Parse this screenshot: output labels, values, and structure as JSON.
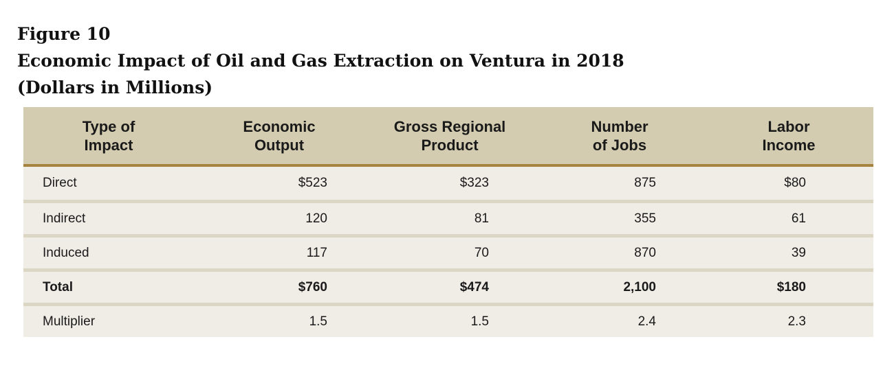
{
  "figure": {
    "label": "Figure 10",
    "title": "Economic Impact of Oil and Gas Extraction on Ventura in 2018",
    "subtitle": "(Dollars in Millions)"
  },
  "table": {
    "headers": [
      "Type of\nImpact",
      "Economic\nOutput",
      "Gross Regional\nProduct",
      "Number\nof Jobs",
      "Labor\nIncome"
    ],
    "rows": [
      [
        "Direct",
        "$523",
        "$323",
        "875",
        "$80"
      ],
      [
        "Indirect",
        "120",
        "81",
        "355",
        "61"
      ],
      [
        "Induced",
        "117",
        "70",
        "870",
        "39"
      ],
      [
        "Total",
        "$760",
        "$474",
        "2,100",
        "$180"
      ],
      [
        "Multiplier",
        "1.5",
        "1.5",
        "2.4",
        "2.3"
      ]
    ]
  },
  "colors": {
    "header_background": "#d3ccb0",
    "header_rule": "#a6843f",
    "row_background": "#f0ede7",
    "row_separator": "#dcd6c4"
  }
}
